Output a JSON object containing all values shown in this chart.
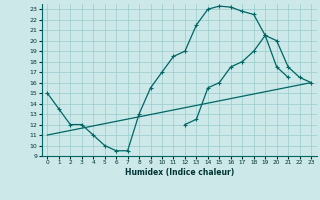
{
  "bg_color": "#cce8e8",
  "grid_color": "#99cccc",
  "line_color": "#006666",
  "xlabel": "Humidex (Indice chaleur)",
  "xlim": [
    -0.5,
    23.5
  ],
  "ylim": [
    9,
    23.5
  ],
  "yticks": [
    9,
    10,
    11,
    12,
    13,
    14,
    15,
    16,
    17,
    18,
    19,
    20,
    21,
    22,
    23
  ],
  "xticks": [
    0,
    1,
    2,
    3,
    4,
    5,
    6,
    7,
    8,
    9,
    10,
    11,
    12,
    13,
    14,
    15,
    16,
    17,
    18,
    19,
    20,
    21,
    22,
    23
  ],
  "line1_x": [
    0,
    1,
    2,
    3,
    4,
    5,
    6,
    7,
    8,
    9,
    10,
    11,
    12,
    13,
    14,
    15,
    16,
    17,
    18,
    19,
    20,
    21
  ],
  "line1_y": [
    15,
    13.5,
    12,
    12,
    11,
    10,
    9.5,
    9.5,
    13,
    15.5,
    17,
    18.5,
    19,
    21.5,
    23,
    23.3,
    23.2,
    22.8,
    22.5,
    20.5,
    17.5,
    16.5
  ],
  "line2_x": [
    12,
    13,
    14,
    15,
    16,
    17,
    18,
    19,
    20,
    21,
    22,
    23
  ],
  "line2_y": [
    12,
    12.5,
    15.5,
    16,
    17.5,
    18,
    19,
    20.5,
    20,
    17.5,
    16.5,
    16
  ],
  "line3_x": [
    0,
    23
  ],
  "line3_y": [
    11,
    16
  ]
}
